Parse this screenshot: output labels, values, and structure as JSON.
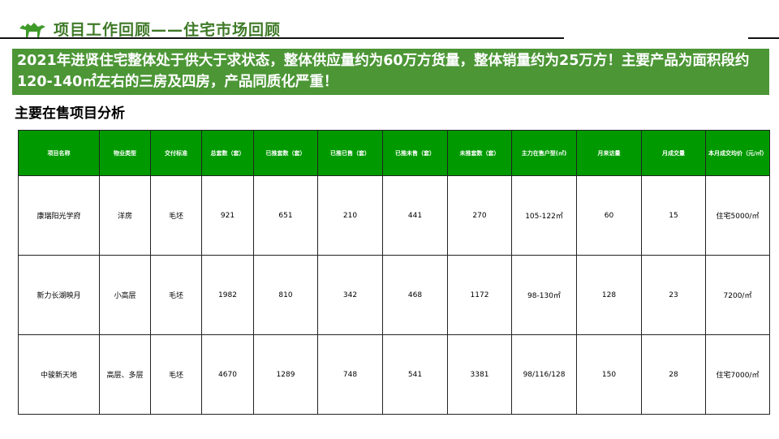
{
  "header": {
    "title": "项目工作回顾——住宅市场回顾",
    "logo": "camel-logo",
    "accent": "#3f7a28"
  },
  "banner": {
    "text": "2021年进贤住宅整体处于供大于求状态，整体供应量约为60万方货量，整体销量约为25万方！主要产品为面积段约120-140㎡左右的三房及四房，产品同质化严重！",
    "color": "#4c9636"
  },
  "section": {
    "title": "主要在售项目分析"
  },
  "table": {
    "headers": [
      "项目名称",
      "物业类型",
      "交付标准",
      "总套数（套）",
      "已推套数（套）",
      "已推已售（套）",
      "已推未售（套）",
      "未推套数（套）",
      "主力在售户型(㎡)",
      "月来访量",
      "月成交量",
      "本月成交均价（元/㎡）"
    ],
    "rows": [
      [
        "康瑞阳光学府",
        "洋房",
        "毛坯",
        "921",
        "651",
        "210",
        "441",
        "270",
        "105-122㎡",
        "60",
        "15",
        "住宅5000/㎡"
      ],
      [
        "新力长湖映月",
        "小高层",
        "毛坯",
        "1982",
        "810",
        "342",
        "468",
        "1172",
        "98-130㎡",
        "128",
        "23",
        "7200/㎡"
      ],
      [
        "中骏新天地",
        "高层、多层",
        "毛坯",
        "4670",
        "1289",
        "748",
        "541",
        "3381",
        "98/116/128",
        "150",
        "28",
        "住宅7000/㎡"
      ]
    ],
    "header_color": "#009a00"
  }
}
